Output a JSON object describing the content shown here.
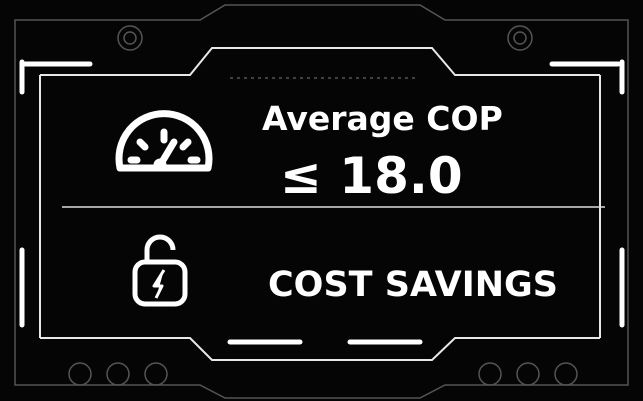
{
  "items": [
    {
      "label": "Average COP",
      "value": "≤ 18.0"
    },
    {
      "label": "COST SAVINGS"
    }
  ]
}
